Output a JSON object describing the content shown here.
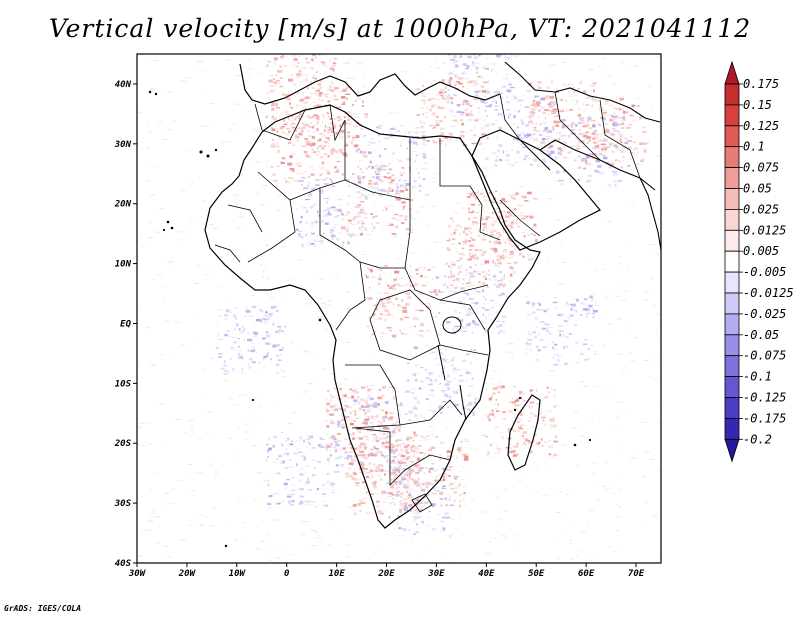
{
  "title": "Vertical velocity [m/s] at 1000hPa, VT: 2021041112",
  "credit": "GrADS: IGES/COLA",
  "map": {
    "region": "Africa",
    "lon_range": [
      -30,
      75
    ],
    "lat_range": [
      -40,
      45
    ],
    "lon_ticks": [
      "30W",
      "20W",
      "10W",
      "0",
      "10E",
      "20E",
      "30E",
      "40E",
      "50E",
      "60E",
      "70E"
    ],
    "lat_ticks": [
      "40S",
      "30S",
      "20S",
      "10S",
      "EQ",
      "10N",
      "20N",
      "30N",
      "40N"
    ]
  },
  "colorbar": {
    "labels": [
      "0.175",
      "0.15",
      "0.125",
      "0.1",
      "0.075",
      "0.05",
      "0.025",
      "0.0125",
      "0.005",
      "-0.005",
      "-0.0125",
      "-0.025",
      "-0.05",
      "-0.075",
      "-0.1",
      "-0.125",
      "-0.175",
      "-0.2"
    ],
    "colors": [
      "#b2182b",
      "#c62d2d",
      "#d6403f",
      "#e05a56",
      "#e87d78",
      "#ef9d98",
      "#f5bdb8",
      "#fad6d2",
      "#fdeceb",
      "#ffffff",
      "#e8e6fb",
      "#cfcbf7",
      "#b3acef",
      "#9a8fe6",
      "#7f72dc",
      "#6457d0",
      "#4a3dc2",
      "#3428b2",
      "#221a9e"
    ]
  }
}
